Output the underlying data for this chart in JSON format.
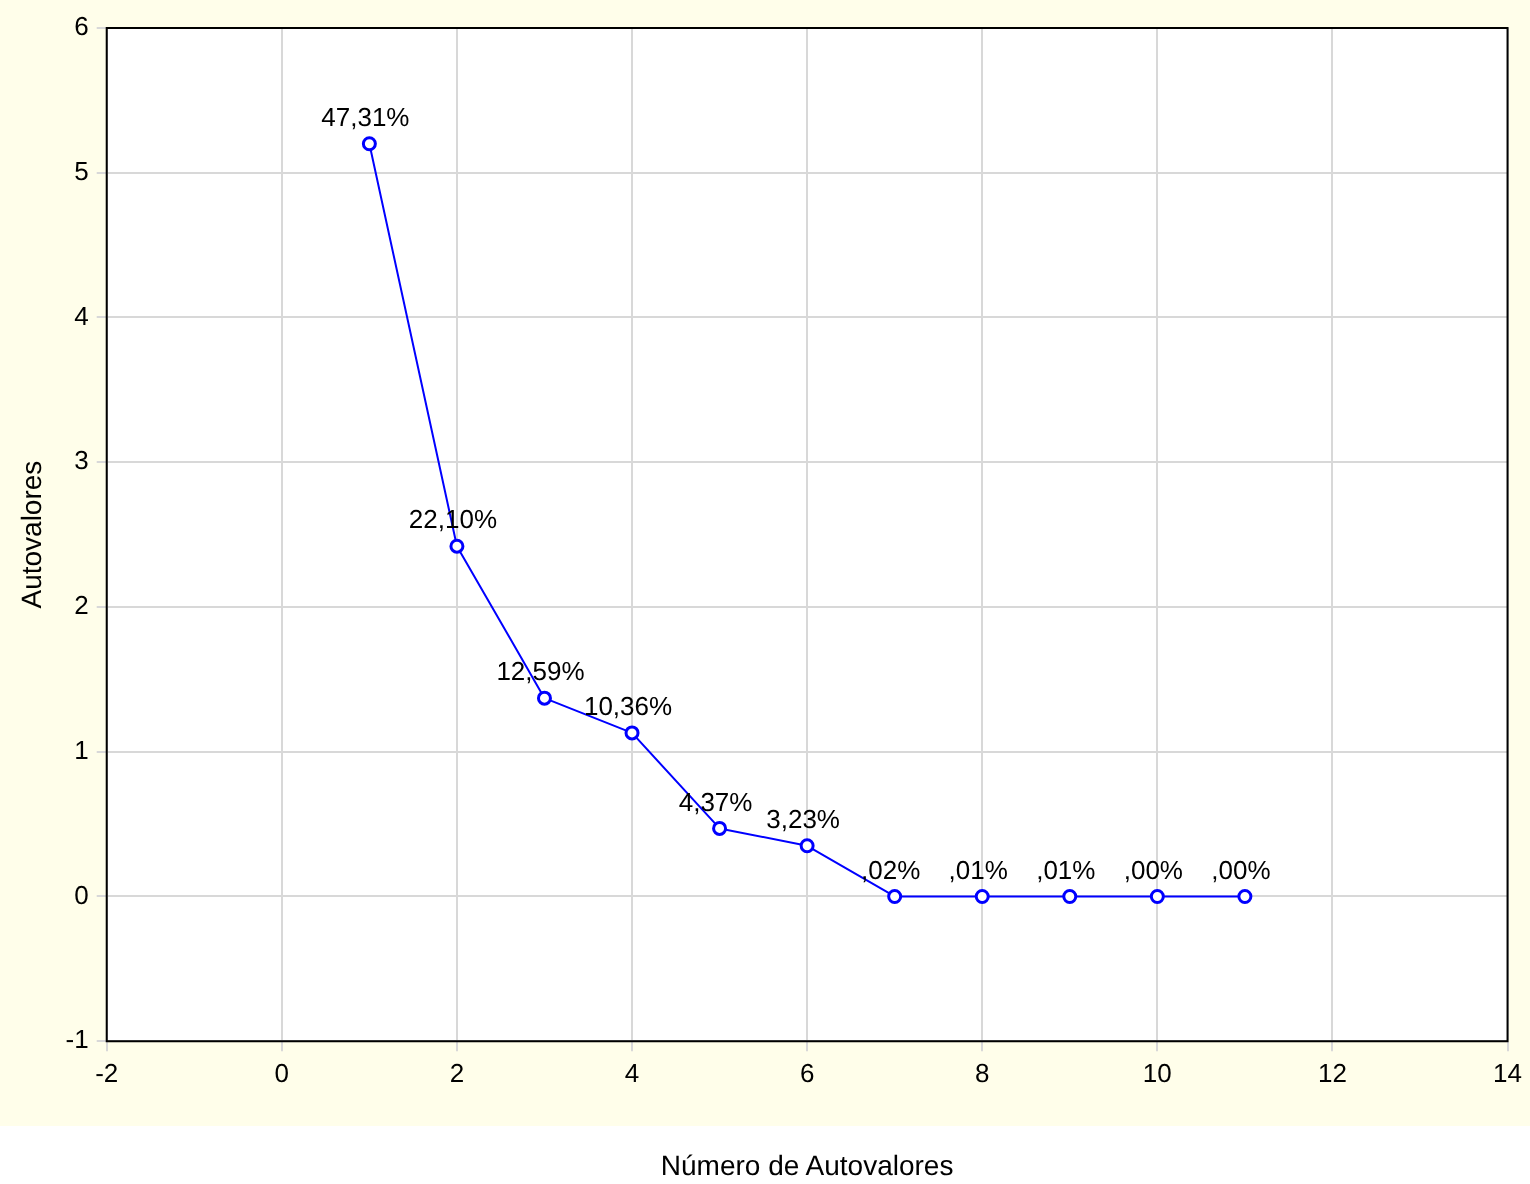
{
  "chart_data": {
    "type": "line",
    "xlabel": "Número de Autovalores",
    "ylabel": "Autovalores",
    "x": [
      1,
      2,
      3,
      4,
      5,
      6,
      7,
      8,
      9,
      10,
      11
    ],
    "series": [
      {
        "color": "#0000ff",
        "values": [
          5.2,
          2.42,
          1.37,
          1.13,
          0.47,
          0.35,
          0,
          0,
          0,
          0,
          0
        ]
      }
    ],
    "annotations": [
      {
        "text": "47,31%",
        "x": 1,
        "y": 5.2
      },
      {
        "text": "22,10%",
        "x": 2,
        "y": 2.42
      },
      {
        "text": "12,59%",
        "x": 3,
        "y": 1.37
      },
      {
        "text": "10,36%",
        "x": 4,
        "y": 1.13
      },
      {
        "text": "4,37%",
        "x": 5,
        "y": 0.47
      },
      {
        "text": "3,23%",
        "x": 6,
        "y": 0.35
      },
      {
        "text": ",02%",
        "x": 7,
        "y": 0
      },
      {
        "text": ",01%",
        "x": 8,
        "y": 0
      },
      {
        "text": ",01%",
        "x": 9,
        "y": 0
      },
      {
        "text": ",00%",
        "x": 10,
        "y": 0
      },
      {
        "text": ",00%",
        "x": 11,
        "y": 0
      }
    ],
    "xlim": [
      -2,
      14
    ],
    "xticks": [
      -2,
      0,
      2,
      4,
      6,
      8,
      10,
      12,
      14
    ],
    "ylim": [
      -1,
      6
    ],
    "yticks": [
      -1,
      0,
      1,
      2,
      3,
      4,
      5,
      6
    ],
    "grid": true,
    "legend": false,
    "marker": "circle",
    "line_style": "solid"
  }
}
